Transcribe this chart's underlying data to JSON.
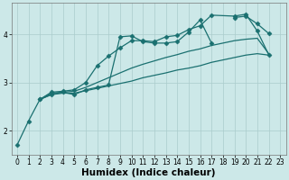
{
  "xlabel": "Humidex (Indice chaleur)",
  "xlim": [
    -0.5,
    23.5
  ],
  "ylim": [
    1.5,
    4.65
  ],
  "bg_color": "#cce8e8",
  "line_color": "#1a7070",
  "grid_color": "#aacccc",
  "lines": [
    {
      "x": [
        0,
        1,
        2,
        3,
        4,
        5,
        6,
        7,
        8,
        9,
        10,
        11,
        12,
        13,
        14,
        15,
        16,
        17,
        18,
        19,
        20,
        21,
        22
      ],
      "y": [
        1.7,
        2.2,
        2.65,
        2.75,
        2.8,
        2.75,
        2.85,
        2.9,
        2.95,
        3.95,
        3.97,
        3.85,
        3.82,
        3.82,
        3.85,
        4.05,
        4.3,
        3.82,
        null,
        4.35,
        4.38,
        4.22,
        4.02
      ],
      "marker": "D",
      "ms": 2.5,
      "lw": 0.9
    },
    {
      "x": [
        2,
        3,
        4,
        5,
        6,
        7,
        8,
        9,
        10,
        11,
        12,
        13,
        14,
        15,
        16,
        17,
        19,
        20,
        21,
        22
      ],
      "y": [
        2.65,
        2.8,
        2.82,
        2.85,
        3.0,
        3.35,
        3.55,
        3.72,
        3.87,
        3.87,
        3.85,
        3.95,
        3.98,
        4.1,
        4.18,
        4.4,
        4.38,
        4.42,
        4.07,
        3.58
      ],
      "marker": "D",
      "ms": 2.5,
      "lw": 0.9
    },
    {
      "x": [
        2,
        3,
        4,
        5,
        6,
        7,
        8,
        9,
        10,
        11,
        12,
        13,
        14,
        15,
        16,
        17,
        18,
        19,
        20,
        21,
        22
      ],
      "y": [
        2.65,
        2.78,
        2.8,
        2.82,
        2.9,
        3.0,
        3.1,
        3.2,
        3.3,
        3.38,
        3.45,
        3.52,
        3.58,
        3.65,
        3.7,
        3.77,
        3.82,
        3.87,
        3.9,
        3.92,
        3.6
      ],
      "marker": null,
      "ms": 0,
      "lw": 0.9
    },
    {
      "x": [
        2,
        3,
        4,
        5,
        6,
        7,
        8,
        9,
        10,
        11,
        12,
        13,
        14,
        15,
        16,
        17,
        18,
        19,
        20,
        21,
        22
      ],
      "y": [
        2.65,
        2.75,
        2.78,
        2.78,
        2.83,
        2.88,
        2.93,
        2.98,
        3.03,
        3.1,
        3.15,
        3.2,
        3.26,
        3.3,
        3.35,
        3.42,
        3.47,
        3.52,
        3.57,
        3.6,
        3.57
      ],
      "marker": null,
      "ms": 0,
      "lw": 0.9
    }
  ],
  "xticks": [
    0,
    1,
    2,
    3,
    4,
    5,
    6,
    7,
    8,
    9,
    10,
    11,
    12,
    13,
    14,
    15,
    16,
    17,
    18,
    19,
    20,
    21,
    22,
    23
  ],
  "yticks": [
    2,
    3,
    4
  ],
  "tick_fontsize": 5.5,
  "xlabel_fontsize": 7.5
}
